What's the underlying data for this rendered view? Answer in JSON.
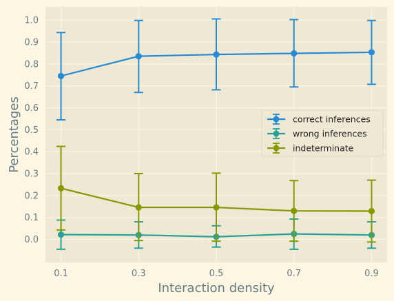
{
  "chart_data": {
    "type": "line",
    "title": "",
    "xlabel": "Interaction density",
    "ylabel": "Percentages",
    "x": [
      0.1,
      0.3,
      0.5,
      0.7,
      0.9
    ],
    "x_tick_labels": [
      "0.1",
      "0.3",
      "0.5",
      "0.7",
      "0.9"
    ],
    "xlim": [
      0.06,
      0.94
    ],
    "ylim": [
      -0.105,
      1.06
    ],
    "y_ticks": [
      0.0,
      0.1,
      0.2,
      0.3,
      0.4,
      0.5,
      0.6,
      0.7,
      0.8,
      0.9,
      1.0
    ],
    "y_tick_labels": [
      "0.0",
      "0.1",
      "0.2",
      "0.3",
      "0.4",
      "0.5",
      "0.6",
      "0.7",
      "0.8",
      "0.9",
      "1.0"
    ],
    "grid": true,
    "legend_position": "center-right",
    "error_bars": true,
    "series": [
      {
        "name": "correct inferences",
        "color": "#268bd2",
        "values": [
          0.745,
          0.835,
          0.843,
          0.848,
          0.853
        ],
        "lower": [
          0.545,
          0.67,
          0.682,
          0.695,
          0.707
        ],
        "upper": [
          0.943,
          0.998,
          1.005,
          1.002,
          0.998
        ]
      },
      {
        "name": "wrong inferences",
        "color": "#2aa198",
        "values": [
          0.022,
          0.02,
          0.012,
          0.025,
          0.02
        ],
        "lower": [
          -0.045,
          -0.04,
          -0.035,
          -0.045,
          -0.04
        ],
        "upper": [
          0.088,
          0.08,
          0.062,
          0.093,
          0.08
        ]
      },
      {
        "name": "indeterminate",
        "color": "#859900",
        "values": [
          0.233,
          0.146,
          0.146,
          0.13,
          0.129
        ],
        "lower": [
          0.043,
          -0.005,
          -0.008,
          -0.008,
          -0.012
        ],
        "upper": [
          0.424,
          0.3,
          0.302,
          0.268,
          0.27
        ]
      }
    ],
    "colors": {
      "page_background": "#fdf6e3",
      "plot_background": "#eee8d5",
      "grid": "#fdf6e3",
      "text": "#657b83"
    }
  }
}
